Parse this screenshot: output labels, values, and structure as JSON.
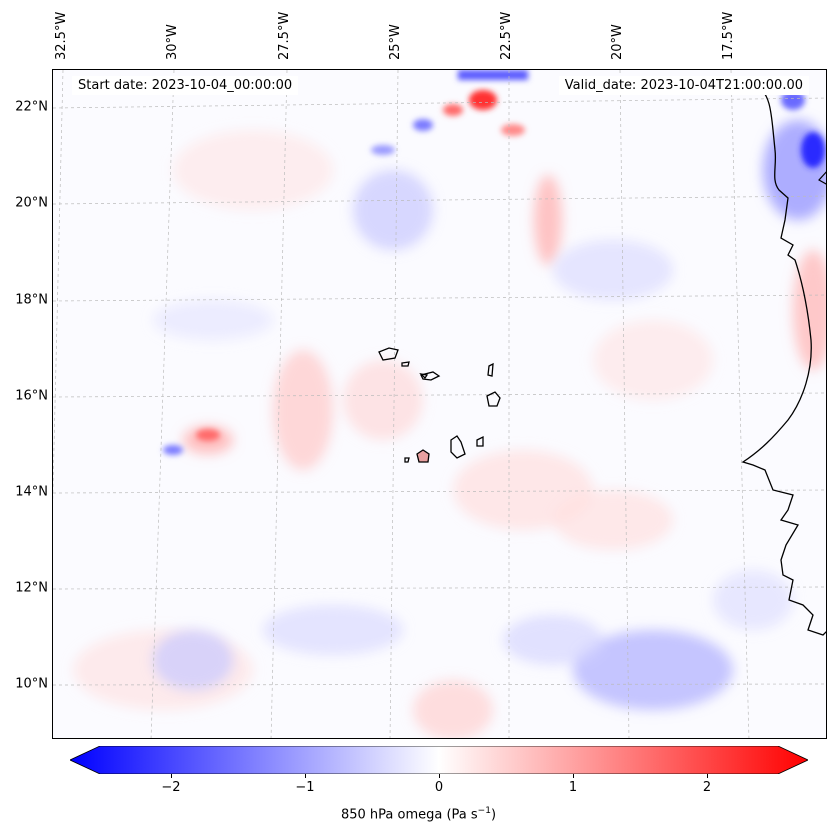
{
  "map": {
    "start_date": "Start date: 2023-10-04_00:00:00",
    "valid_date": "Valid_date: 2023-10-04T21:00:00.00",
    "lon_labels": [
      "32.5°W",
      "30°W",
      "27.5°W",
      "25°W",
      "22.5°W",
      "20°W",
      "17.5°W"
    ],
    "lat_labels": [
      "22°N",
      "20°N",
      "18°N",
      "16°N",
      "14°N",
      "12°N",
      "10°N"
    ],
    "field": "850 hPa omega",
    "colors": {
      "negative": "#0000ff",
      "zero": "#ffffff",
      "positive": "#ff0000",
      "coast": "#000000"
    }
  },
  "colorbar": {
    "ticks": [
      "−2",
      "−1",
      "0",
      "1",
      "2"
    ],
    "label_main": "850 hPa omega (Pa s",
    "label_sup": "−1",
    "label_close": ")",
    "vmin": -2.7,
    "vmax": 2.7
  }
}
